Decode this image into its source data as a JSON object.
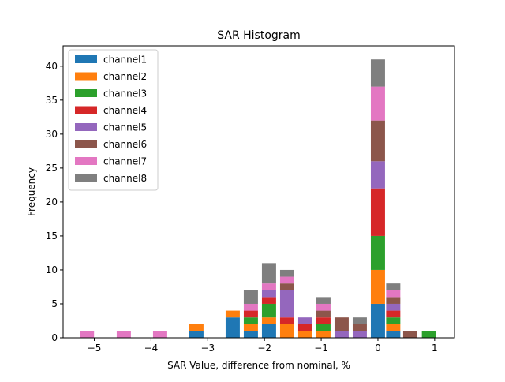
{
  "chart_data": {
    "type": "bar",
    "stacked": true,
    "title": "SAR Histogram",
    "xlabel": "SAR Value, difference from nominal, %",
    "ylabel": "Frequency",
    "xlim": [
      -5.55,
      1.35
    ],
    "ylim": [
      0,
      43
    ],
    "x_ticks": [
      -5,
      -4,
      -3,
      -2,
      -1,
      0,
      1
    ],
    "x_tick_labels": [
      "−5",
      "−4",
      "−3",
      "−2",
      "−1",
      "0",
      "1"
    ],
    "y_ticks": [
      0,
      5,
      10,
      15,
      20,
      25,
      30,
      35,
      40
    ],
    "y_tick_labels": [
      "0",
      "5",
      "10",
      "15",
      "20",
      "25",
      "30",
      "35",
      "40"
    ],
    "bin_width": 0.25,
    "x": [
      -5.13,
      -4.8,
      -4.48,
      -4.16,
      -3.84,
      -3.52,
      -3.2,
      -2.88,
      -2.56,
      -2.24,
      -1.92,
      -1.6,
      -1.28,
      -0.96,
      -0.64,
      -0.32,
      0.0,
      0.27,
      0.57,
      0.9
    ],
    "legend_position": "upper-left",
    "series": [
      {
        "name": "channel1",
        "color": "#1f77b4",
        "values": [
          0,
          0,
          0,
          0,
          0,
          0,
          1,
          0,
          3,
          1,
          2,
          0,
          0,
          0,
          0,
          0,
          5,
          1,
          0,
          0
        ]
      },
      {
        "name": "channel2",
        "color": "#ff7f0e",
        "values": [
          0,
          0,
          0,
          0,
          0,
          0,
          1,
          0,
          1,
          1,
          1,
          2,
          1,
          1,
          0,
          0,
          5,
          1,
          0,
          0
        ]
      },
      {
        "name": "channel3",
        "color": "#2ca02c",
        "values": [
          0,
          0,
          0,
          0,
          0,
          0,
          0,
          0,
          0,
          1,
          2,
          0,
          0,
          1,
          0,
          0,
          5,
          1,
          0,
          1
        ]
      },
      {
        "name": "channel4",
        "color": "#d62728",
        "values": [
          0,
          0,
          0,
          0,
          0,
          0,
          0,
          0,
          0,
          1,
          1,
          1,
          1,
          1,
          0,
          0,
          7,
          1,
          0,
          0
        ]
      },
      {
        "name": "channel5",
        "color": "#9467bd",
        "values": [
          0,
          0,
          0,
          0,
          0,
          0,
          0,
          0,
          0,
          0,
          1,
          4,
          1,
          0,
          1,
          1,
          4,
          1,
          0,
          0
        ]
      },
      {
        "name": "channel6",
        "color": "#8c564b",
        "values": [
          0,
          0,
          0,
          0,
          0,
          0,
          0,
          0,
          0,
          0,
          0,
          1,
          0,
          1,
          2,
          1,
          6,
          1,
          1,
          0
        ]
      },
      {
        "name": "channel7",
        "color": "#e377c2",
        "values": [
          1,
          0,
          1,
          0,
          1,
          0,
          0,
          0,
          0,
          1,
          1,
          1,
          0,
          1,
          0,
          0,
          5,
          1,
          0,
          0
        ]
      },
      {
        "name": "channel8",
        "color": "#7f7f7f",
        "values": [
          0,
          0,
          0,
          0,
          0,
          0,
          0,
          0,
          0,
          2,
          3,
          1,
          0,
          1,
          0,
          1,
          4,
          1,
          0,
          0
        ]
      }
    ]
  }
}
